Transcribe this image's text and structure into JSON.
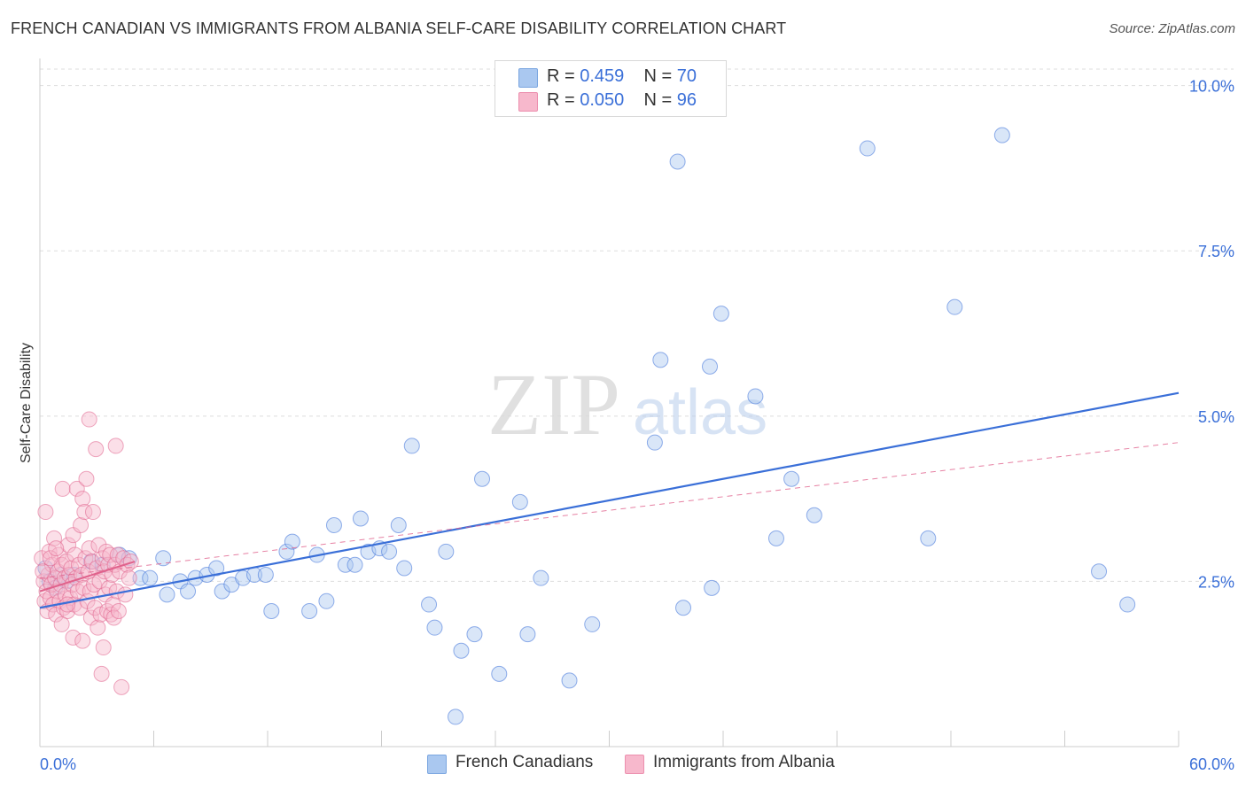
{
  "title": "FRENCH CANADIAN VS IMMIGRANTS FROM ALBANIA SELF-CARE DISABILITY CORRELATION CHART",
  "source": "Source: ZipAtlas.com",
  "watermark": {
    "zip": "ZIP",
    "atlas": "atlas"
  },
  "legend": {
    "rows": [
      {
        "r_label": "R = ",
        "r_value": "0.459",
        "n_label": "N = ",
        "n_value": "70",
        "color": "#aac8f0"
      },
      {
        "r_label": "R = ",
        "r_value": "0.050",
        "n_label": "N = ",
        "n_value": "96",
        "color": "#f7b8cc"
      }
    ]
  },
  "bottom_legend": [
    {
      "label": "French Canadians",
      "color": "#aac8f0"
    },
    {
      "label": "Immigrants from Albania",
      "color": "#f7b8cc"
    }
  ],
  "chart_data": {
    "type": "scatter",
    "title": "FRENCH CANADIAN VS IMMIGRANTS FROM ALBANIA SELF-CARE DISABILITY CORRELATION CHART",
    "xlabel": "",
    "ylabel": "Self-Care Disability",
    "xlim": [
      0,
      60
    ],
    "ylim": [
      0,
      10.25
    ],
    "x_tick_labels": [
      {
        "value": 0,
        "label": "0.0%"
      },
      {
        "value": 60,
        "label": "60.0%"
      }
    ],
    "y_tick_labels": [
      {
        "value": 2.5,
        "label": "2.5%"
      },
      {
        "value": 5.0,
        "label": "5.0%"
      },
      {
        "value": 7.5,
        "label": "7.5%"
      },
      {
        "value": 10.0,
        "label": "10.0%"
      }
    ],
    "series": [
      {
        "name": "French Canadians",
        "color": "#3a6fd8",
        "fill": "#aac8f0",
        "R": 0.459,
        "N": 70,
        "trend": {
          "x": [
            0,
            60
          ],
          "y": [
            2.1,
            5.35
          ],
          "style": "solid"
        },
        "points": [
          [
            0.3,
            2.7
          ],
          [
            0.5,
            2.5
          ],
          [
            0.8,
            2.4
          ],
          [
            1.1,
            2.6
          ],
          [
            1.4,
            2.5
          ],
          [
            1.8,
            2.6
          ],
          [
            2.7,
            2.8
          ],
          [
            3.3,
            2.75
          ],
          [
            4.2,
            2.9
          ],
          [
            4.7,
            2.85
          ],
          [
            5.3,
            2.55
          ],
          [
            5.8,
            2.55
          ],
          [
            6.5,
            2.85
          ],
          [
            6.7,
            2.3
          ],
          [
            7.4,
            2.5
          ],
          [
            7.8,
            2.35
          ],
          [
            8.2,
            2.55
          ],
          [
            8.8,
            2.6
          ],
          [
            9.3,
            2.7
          ],
          [
            9.6,
            2.35
          ],
          [
            10.1,
            2.45
          ],
          [
            10.7,
            2.55
          ],
          [
            11.3,
            2.6
          ],
          [
            11.9,
            2.6
          ],
          [
            12.2,
            2.05
          ],
          [
            13.0,
            2.95
          ],
          [
            13.3,
            3.1
          ],
          [
            14.2,
            2.05
          ],
          [
            14.6,
            2.9
          ],
          [
            15.1,
            2.2
          ],
          [
            15.5,
            3.35
          ],
          [
            16.1,
            2.75
          ],
          [
            16.6,
            2.75
          ],
          [
            16.9,
            3.45
          ],
          [
            17.3,
            2.95
          ],
          [
            17.9,
            3.0
          ],
          [
            18.4,
            2.95
          ],
          [
            18.9,
            3.35
          ],
          [
            19.2,
            2.7
          ],
          [
            19.6,
            4.55
          ],
          [
            20.5,
            2.15
          ],
          [
            20.8,
            1.8
          ],
          [
            21.4,
            2.95
          ],
          [
            22.2,
            1.45
          ],
          [
            22.9,
            1.7
          ],
          [
            23.3,
            4.05
          ],
          [
            24.2,
            1.1
          ],
          [
            25.3,
            3.7
          ],
          [
            25.7,
            1.7
          ],
          [
            26.4,
            2.55
          ],
          [
            27.9,
            1.0
          ],
          [
            29.1,
            1.85
          ],
          [
            32.4,
            4.6
          ],
          [
            32.7,
            5.85
          ],
          [
            33.6,
            8.85
          ],
          [
            33.9,
            2.1
          ],
          [
            35.3,
            5.75
          ],
          [
            35.4,
            2.4
          ],
          [
            35.9,
            6.55
          ],
          [
            37.7,
            5.3
          ],
          [
            38.8,
            3.15
          ],
          [
            39.6,
            4.05
          ],
          [
            40.8,
            3.5
          ],
          [
            43.6,
            9.05
          ],
          [
            46.8,
            3.15
          ],
          [
            48.2,
            6.65
          ],
          [
            50.7,
            9.25
          ],
          [
            55.8,
            2.65
          ],
          [
            57.3,
            2.15
          ],
          [
            21.9,
            0.45
          ]
        ]
      },
      {
        "name": "Immigrants from Albania",
        "color": "#e0628c",
        "fill": "#f7b8cc",
        "R": 0.05,
        "N": 96,
        "trend": {
          "x": [
            0,
            60
          ],
          "y": [
            2.55,
            4.6
          ],
          "style": "dashed"
        },
        "trend_local": {
          "x": [
            0,
            5.0
          ],
          "y": [
            2.35,
            2.8
          ],
          "style": "solid"
        },
        "points": [
          [
            0.1,
            2.85
          ],
          [
            0.2,
            2.5
          ],
          [
            0.25,
            2.2
          ],
          [
            0.3,
            3.55
          ],
          [
            0.35,
            2.35
          ],
          [
            0.4,
            2.05
          ],
          [
            0.45,
            2.6
          ],
          [
            0.5,
            2.95
          ],
          [
            0.55,
            2.25
          ],
          [
            0.6,
            2.45
          ],
          [
            0.65,
            2.75
          ],
          [
            0.7,
            2.15
          ],
          [
            0.75,
            3.15
          ],
          [
            0.8,
            2.55
          ],
          [
            0.85,
            2.0
          ],
          [
            0.9,
            2.35
          ],
          [
            0.95,
            2.65
          ],
          [
            1.0,
            2.9
          ],
          [
            1.05,
            2.2
          ],
          [
            1.1,
            2.45
          ],
          [
            1.15,
            2.75
          ],
          [
            1.2,
            3.9
          ],
          [
            1.25,
            2.1
          ],
          [
            1.3,
            2.55
          ],
          [
            1.35,
            2.3
          ],
          [
            1.4,
            2.8
          ],
          [
            1.45,
            2.05
          ],
          [
            1.5,
            3.05
          ],
          [
            1.55,
            2.6
          ],
          [
            1.6,
            2.25
          ],
          [
            1.65,
            2.7
          ],
          [
            1.7,
            2.45
          ],
          [
            1.75,
            3.2
          ],
          [
            1.8,
            2.15
          ],
          [
            1.85,
            2.9
          ],
          [
            1.9,
            2.55
          ],
          [
            1.95,
            3.9
          ],
          [
            2.0,
            2.35
          ],
          [
            2.05,
            2.75
          ],
          [
            2.1,
            2.1
          ],
          [
            2.15,
            3.35
          ],
          [
            2.2,
            2.6
          ],
          [
            2.25,
            3.75
          ],
          [
            2.3,
            2.4
          ],
          [
            2.35,
            3.55
          ],
          [
            2.4,
            2.85
          ],
          [
            2.45,
            4.05
          ],
          [
            2.5,
            2.2
          ],
          [
            2.55,
            2.65
          ],
          [
            2.6,
            3.0
          ],
          [
            2.65,
            2.35
          ],
          [
            2.7,
            1.95
          ],
          [
            2.75,
            2.8
          ],
          [
            2.8,
            3.55
          ],
          [
            2.85,
            2.45
          ],
          [
            2.9,
            2.1
          ],
          [
            2.95,
            4.5
          ],
          [
            3.0,
            2.7
          ],
          [
            3.05,
            1.8
          ],
          [
            3.1,
            3.05
          ],
          [
            3.15,
            2.5
          ],
          [
            3.2,
            2.0
          ],
          [
            3.25,
            1.1
          ],
          [
            3.3,
            2.85
          ],
          [
            3.35,
            1.5
          ],
          [
            3.4,
            2.65
          ],
          [
            3.45,
            2.3
          ],
          [
            3.5,
            2.95
          ],
          [
            3.55,
            2.05
          ],
          [
            3.6,
            2.75
          ],
          [
            3.65,
            2.4
          ],
          [
            3.7,
            2.9
          ],
          [
            3.75,
            2.0
          ],
          [
            3.8,
            2.6
          ],
          [
            3.85,
            2.15
          ],
          [
            3.9,
            1.95
          ],
          [
            3.95,
            2.75
          ],
          [
            4.0,
            4.55
          ],
          [
            4.05,
            2.35
          ],
          [
            4.1,
            2.9
          ],
          [
            4.15,
            2.05
          ],
          [
            4.2,
            2.65
          ],
          [
            4.3,
            0.9
          ],
          [
            4.4,
            2.85
          ],
          [
            4.5,
            2.3
          ],
          [
            4.6,
            2.75
          ],
          [
            4.7,
            2.55
          ],
          [
            4.8,
            2.8
          ],
          [
            0.15,
            2.65
          ],
          [
            0.55,
            2.85
          ],
          [
            0.85,
            3.0
          ],
          [
            1.15,
            1.85
          ],
          [
            1.45,
            2.15
          ],
          [
            1.75,
            1.65
          ],
          [
            2.25,
            1.6
          ],
          [
            2.6,
            4.95
          ]
        ]
      }
    ]
  }
}
